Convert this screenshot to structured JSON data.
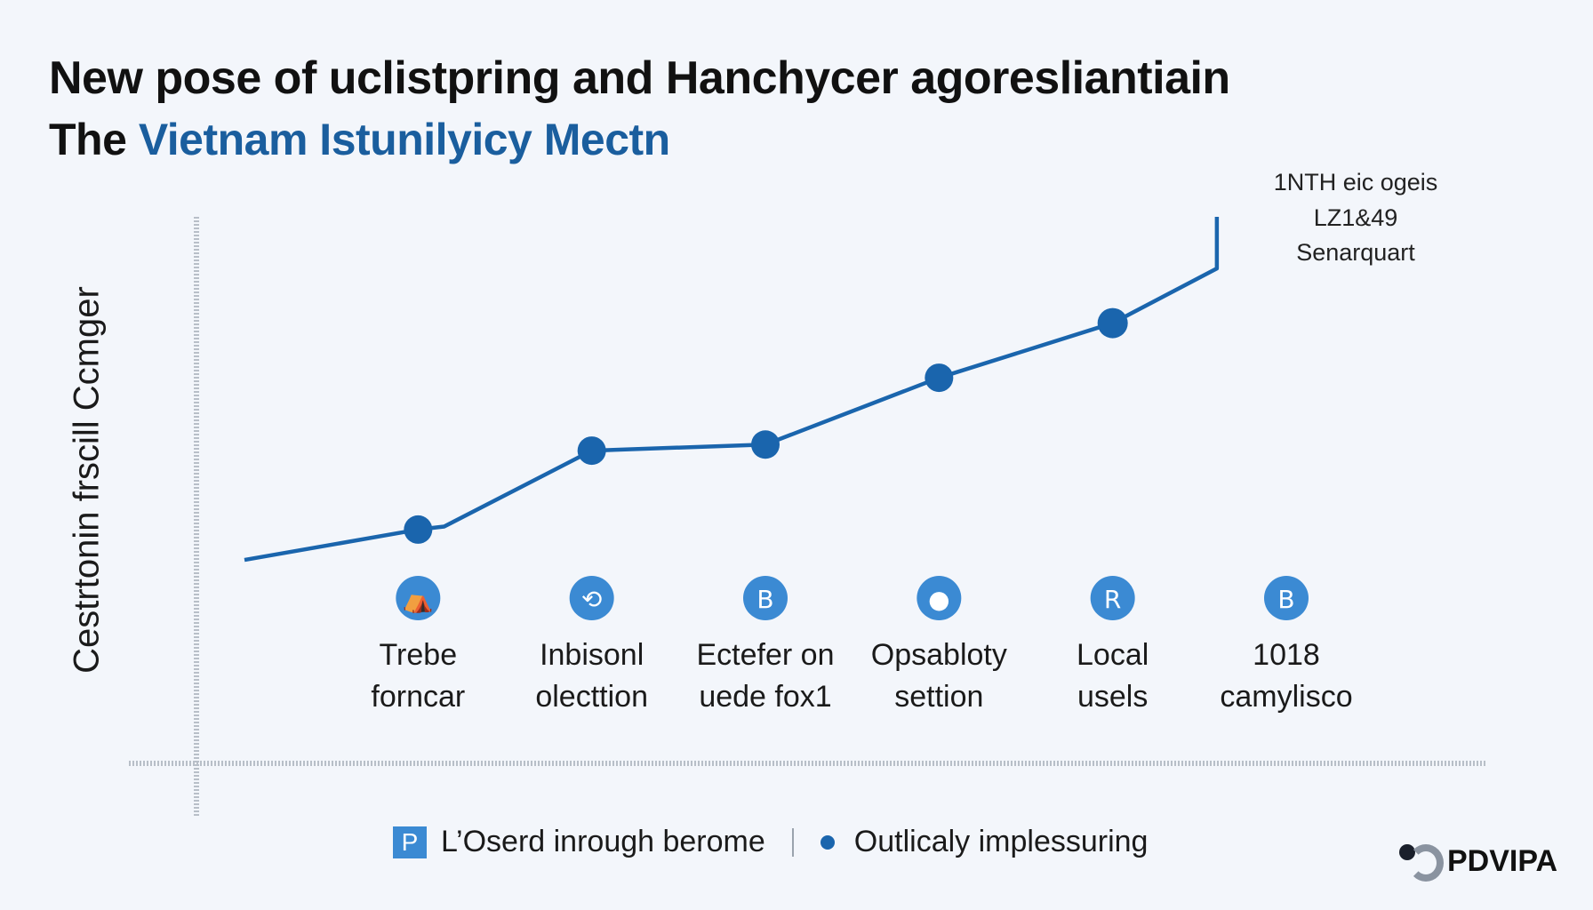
{
  "header": {
    "title": "New pose of uclistpring and Hanchycer agoresliantiain",
    "subtitle_lead": "The",
    "subtitle_rest": "Vietnam Istunilyicy Mectn"
  },
  "annotation": {
    "line1": "1NTH eic ogeis",
    "line2": "LZ1&49",
    "line3": "Senarquart"
  },
  "legend": {
    "square_glyph": "P",
    "item1": "L’Oserd inrough berome",
    "item2": "Outlicaly implessuring"
  },
  "logo": {
    "text": "PDVIPA"
  },
  "colors": {
    "line": "#1a65ad",
    "point": "#1a65ad",
    "icon": "#3b8ad3",
    "title": "#111111",
    "subtitle": "#1a5e9e"
  },
  "chart_data": {
    "type": "line",
    "title": "New pose of uclistpring and Hanchycer agoresliantiain",
    "subtitle": "The Vietnam Istunilyicy Mectn",
    "ylabel": "Cestrtonin frscill Ccmger",
    "xlabel": "",
    "grid": false,
    "legend_position": "bottom",
    "categories": [
      {
        "line1": "Trebe",
        "line2": "forncar",
        "icon": "person-tent-icon",
        "glyph": "⛺"
      },
      {
        "line1": "Inbisonl",
        "line2": "olecttion",
        "icon": "arc-icon",
        "glyph": "⟲"
      },
      {
        "line1": "Ectefer on",
        "line2": "uede fox1",
        "icon": "b-icon",
        "glyph": "B"
      },
      {
        "line1": "Opsabloty",
        "line2": "settion",
        "icon": "person-icon",
        "glyph": "●"
      },
      {
        "line1": "Local",
        "line2": "usels",
        "icon": "r-icon",
        "glyph": "R"
      },
      {
        "line1": "1018",
        "line2": "camylisco",
        "icon": "b-icon",
        "glyph": "B"
      }
    ],
    "points": [
      {
        "x": 0.0,
        "y": 1.2
      },
      {
        "x": 1.0,
        "y": 2.2
      },
      {
        "x": 1.15,
        "y": 2.3
      },
      {
        "x": 2.0,
        "y": 4.8
      },
      {
        "x": 3.0,
        "y": 5.0
      },
      {
        "x": 4.0,
        "y": 7.2
      },
      {
        "x": 5.0,
        "y": 9.0
      },
      {
        "x": 5.6,
        "y": 10.8
      },
      {
        "x": 5.6,
        "y": 12.5
      }
    ],
    "markers": [
      {
        "x": 1.0,
        "y": 2.2
      },
      {
        "x": 2.0,
        "y": 4.8
      },
      {
        "x": 3.0,
        "y": 5.0
      },
      {
        "x": 4.0,
        "y": 7.2
      },
      {
        "x": 5.0,
        "y": 9.0
      }
    ],
    "xlim": [
      0,
      7.5
    ],
    "ylim": [
      -5.5,
      12.5
    ]
  }
}
